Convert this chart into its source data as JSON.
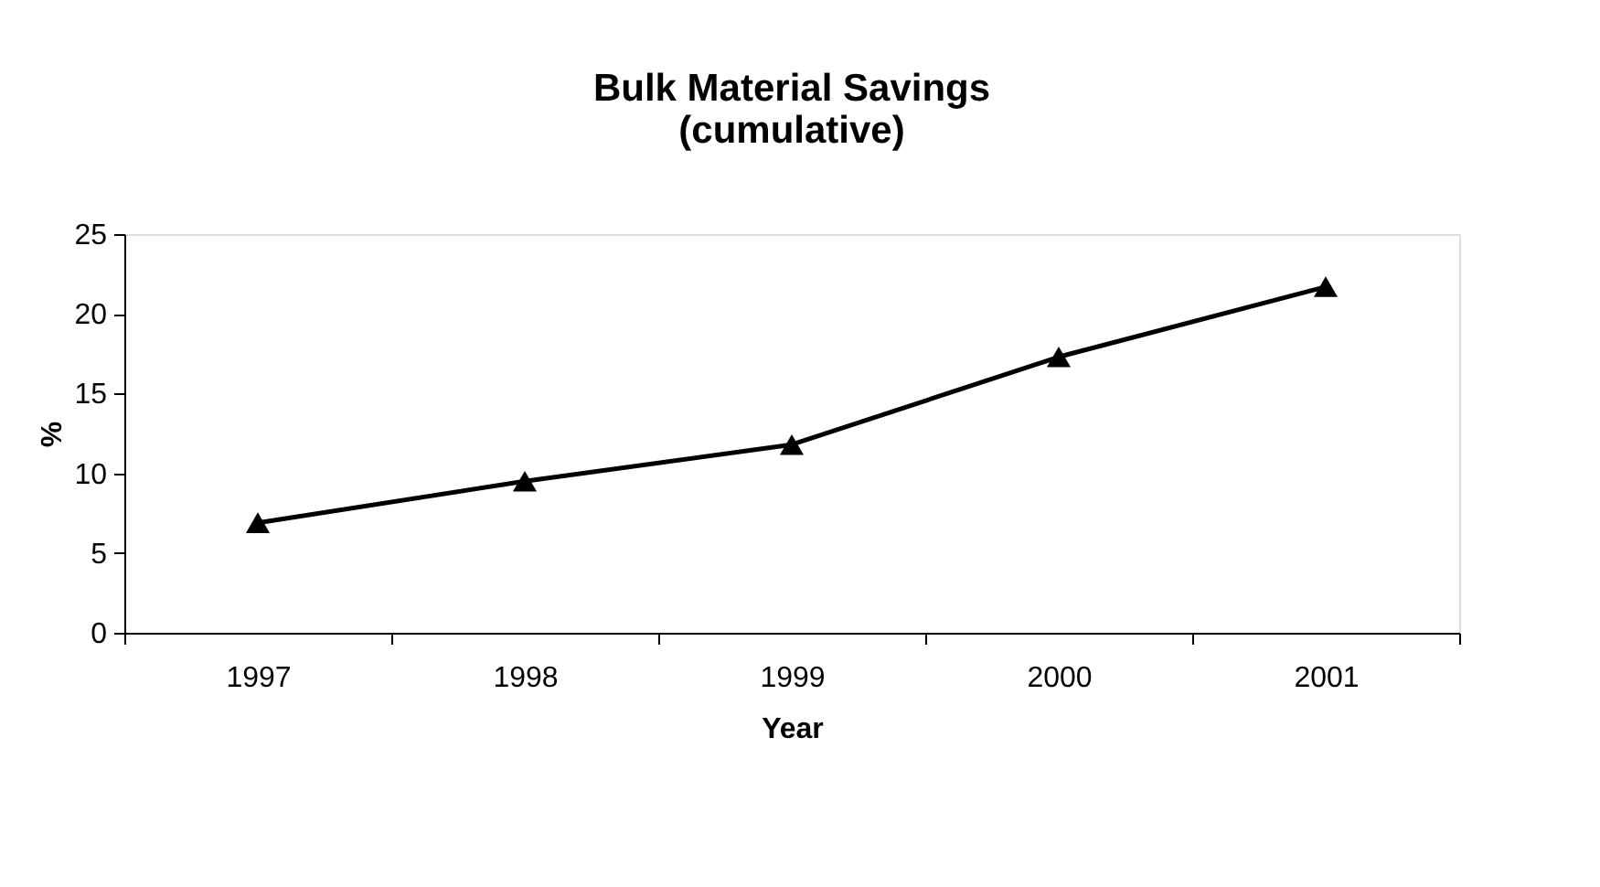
{
  "chart_data": {
    "type": "line",
    "title": [
      "Bulk Material Savings",
      "(cumulative)"
    ],
    "xlabel": "Year",
    "ylabel": "%",
    "categories": [
      "1997",
      "1998",
      "1999",
      "2000",
      "2001"
    ],
    "series": [
      {
        "color": "#000000",
        "values": [
          6.9,
          9.5,
          11.8,
          17.3,
          21.7
        ]
      }
    ],
    "ylim": [
      0,
      25
    ],
    "yticks": [
      0,
      5,
      10,
      15,
      20,
      25
    ],
    "grid": false,
    "marker": "triangle",
    "line_style": "solid"
  }
}
